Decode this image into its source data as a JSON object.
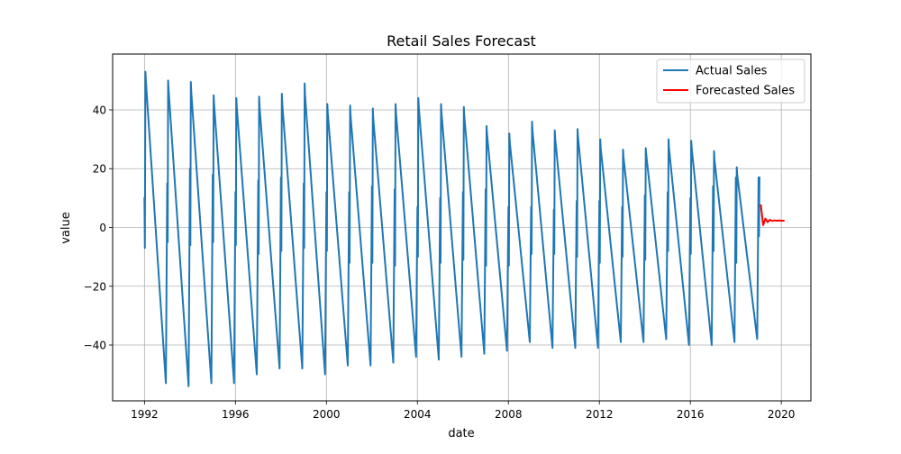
{
  "chart_data": {
    "type": "line",
    "title": "Retail Sales Forecast",
    "xlabel": "date",
    "ylabel": "value",
    "xlim": [
      1990.6,
      2021.3
    ],
    "ylim": [
      -59,
      59
    ],
    "xticks": [
      1992,
      1996,
      2000,
      2004,
      2008,
      2012,
      2016,
      2020
    ],
    "yticks": [
      -40,
      -20,
      0,
      20,
      40
    ],
    "grid": true,
    "legend": {
      "placement": "top-right"
    },
    "series": [
      {
        "name": "Actual Sales",
        "color": "#1f77b4",
        "x": [
          1992.0,
          1992.02,
          1992.04,
          1992.06,
          1992.94,
          1993.0,
          1993.02,
          1993.04,
          1993.06,
          1993.94,
          1994.0,
          1994.02,
          1994.04,
          1994.06,
          1994.94,
          1995.0,
          1995.02,
          1995.04,
          1995.06,
          1995.94,
          1996.0,
          1996.02,
          1996.04,
          1996.06,
          1996.94,
          1997.0,
          1997.02,
          1997.04,
          1997.06,
          1997.94,
          1998.0,
          1998.02,
          1998.04,
          1998.06,
          1998.94,
          1999.0,
          1999.02,
          1999.04,
          1999.06,
          1999.94,
          2000.0,
          2000.02,
          2000.04,
          2000.06,
          2000.94,
          2001.0,
          2001.02,
          2001.04,
          2001.06,
          2001.94,
          2002.0,
          2002.02,
          2002.04,
          2002.06,
          2002.94,
          2003.0,
          2003.02,
          2003.04,
          2003.06,
          2003.94,
          2004.0,
          2004.02,
          2004.04,
          2004.06,
          2004.94,
          2005.0,
          2005.02,
          2005.04,
          2005.06,
          2005.94,
          2006.0,
          2006.02,
          2006.04,
          2006.06,
          2006.94,
          2007.0,
          2007.02,
          2007.04,
          2007.06,
          2007.94,
          2008.0,
          2008.02,
          2008.04,
          2008.06,
          2008.94,
          2009.0,
          2009.02,
          2009.04,
          2009.06,
          2009.94,
          2010.0,
          2010.02,
          2010.04,
          2010.06,
          2010.94,
          2011.0,
          2011.02,
          2011.04,
          2011.06,
          2011.94,
          2012.0,
          2012.02,
          2012.04,
          2012.06,
          2012.94,
          2013.0,
          2013.02,
          2013.04,
          2013.06,
          2013.94,
          2014.0,
          2014.02,
          2014.04,
          2014.06,
          2014.94,
          2015.0,
          2015.02,
          2015.04,
          2015.06,
          2015.94,
          2016.0,
          2016.02,
          2016.04,
          2016.06,
          2016.94,
          2017.0,
          2017.02,
          2017.04,
          2017.06,
          2017.94,
          2018.0,
          2018.02,
          2018.04,
          2018.06,
          2018.94,
          2019.0,
          2019.02,
          2019.04
        ],
        "values": [
          10,
          -7,
          53,
          50,
          -53,
          15,
          -5,
          50,
          47,
          -54,
          20,
          -6,
          49.5,
          46,
          -53,
          18,
          -5,
          45,
          42,
          -53,
          12,
          -6,
          44,
          41,
          -50,
          16,
          -9,
          44.5,
          41,
          -48,
          17,
          -8,
          45.5,
          42,
          -48,
          15,
          -7,
          49,
          45,
          -50,
          12,
          -8,
          42,
          39,
          -47,
          12,
          -12,
          41.5,
          38,
          -47,
          14,
          -12,
          40.5,
          37,
          -46,
          13,
          -13,
          42,
          39,
          -44,
          7,
          -10,
          44,
          41,
          -45,
          10,
          -12,
          42,
          39,
          -44,
          12,
          -11,
          41,
          38,
          -43,
          13,
          -13,
          34.5,
          32,
          -42,
          7,
          -13,
          32,
          29,
          -39,
          7,
          -9,
          36,
          33,
          -41,
          6,
          -9,
          33,
          30,
          -41,
          9,
          -10,
          33.5,
          31,
          -41,
          9,
          -12,
          30,
          27,
          -39,
          7,
          -10,
          26.5,
          24,
          -39,
          11,
          -11,
          27,
          25,
          -38,
          12,
          -8,
          30,
          27,
          -40,
          10,
          -9,
          29.5,
          27,
          -40,
          14,
          -8,
          26,
          23,
          -39,
          17,
          -12,
          20.5,
          18,
          -38,
          17,
          -3,
          17
        ]
      },
      {
        "name": "Forecasted Sales",
        "color": "#ff0000",
        "x": [
          2019.1,
          2019.2,
          2019.3,
          2019.4,
          2019.5,
          2019.6,
          2019.7,
          2019.8,
          2019.9,
          2020.0,
          2020.1
        ],
        "values": [
          7.5,
          0.8,
          3.0,
          1.8,
          2.6,
          2.2,
          2.4,
          2.3,
          2.35,
          2.3,
          2.3
        ]
      }
    ]
  }
}
